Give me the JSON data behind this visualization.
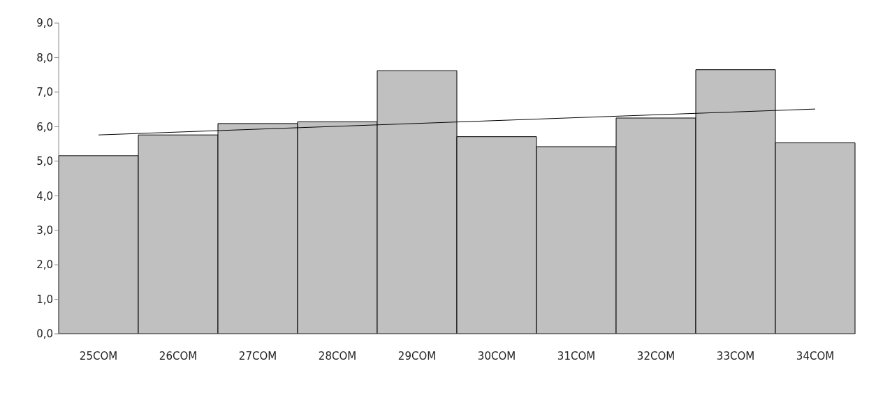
{
  "chart_data": {
    "type": "bar",
    "categories": [
      "25COM",
      "26COM",
      "27COM",
      "28COM",
      "29COM",
      "30COM",
      "31COM",
      "32COM",
      "33COM",
      "34COM"
    ],
    "series": [
      {
        "color": "#c0c0c0",
        "values": [
          5.16,
          5.76,
          6.09,
          6.14,
          7.62,
          5.71,
          5.42,
          6.25,
          7.65,
          5.53
        ]
      },
      {
        "type": "line",
        "color": "#000000",
        "x": [
          "25COM",
          "34COM"
        ],
        "values": [
          5.76,
          6.51
        ]
      }
    ],
    "ylim": [
      0,
      9
    ],
    "yticks": [
      {
        "value": 0,
        "label": "0,0"
      },
      {
        "value": 1,
        "label": "1,0"
      },
      {
        "value": 2,
        "label": "2,0"
      },
      {
        "value": 3,
        "label": "3,0"
      },
      {
        "value": 4,
        "label": "4,0"
      },
      {
        "value": 5,
        "label": "5,0"
      },
      {
        "value": 6,
        "label": "6,0"
      },
      {
        "value": 7,
        "label": "7,0"
      },
      {
        "value": 8,
        "label": "8,0"
      },
      {
        "value": 9,
        "label": "9,0"
      }
    ],
    "grid": false,
    "legend": false,
    "marker": "none",
    "line_style": "solid"
  }
}
